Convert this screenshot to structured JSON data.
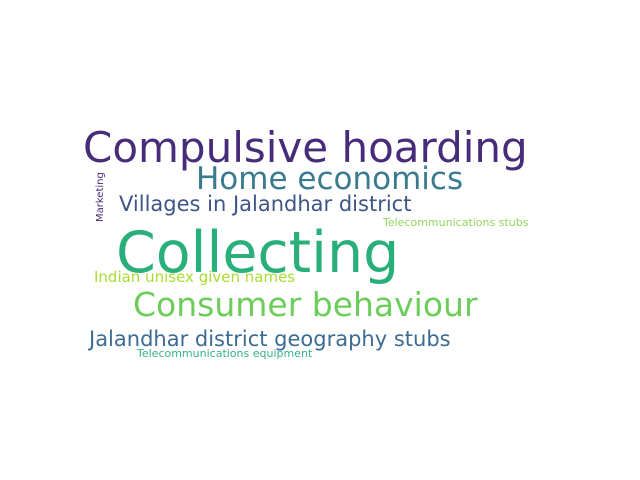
{
  "words": [
    {
      "text": "Compulsive hoarding",
      "color": "#472c7a"
    },
    {
      "text": "Home economics",
      "color": "#3b7b8e"
    },
    {
      "text": "Villages in Jalandhar district",
      "color": "#3e5587"
    },
    {
      "text": "Marketing",
      "color": "#4a2a77"
    },
    {
      "text": "Telecommunications stubs",
      "color": "#8fd65f"
    },
    {
      "text": "Collecting",
      "color": "#29b07a"
    },
    {
      "text": "Indian unisex given names",
      "color": "#aadc32"
    },
    {
      "text": "Consumer behaviour",
      "color": "#6ccd5a"
    },
    {
      "text": "Jalandhar district geography stubs",
      "color": "#3c6b93"
    },
    {
      "text": "Telecommunications equipment",
      "color": "#35b18c"
    }
  ]
}
